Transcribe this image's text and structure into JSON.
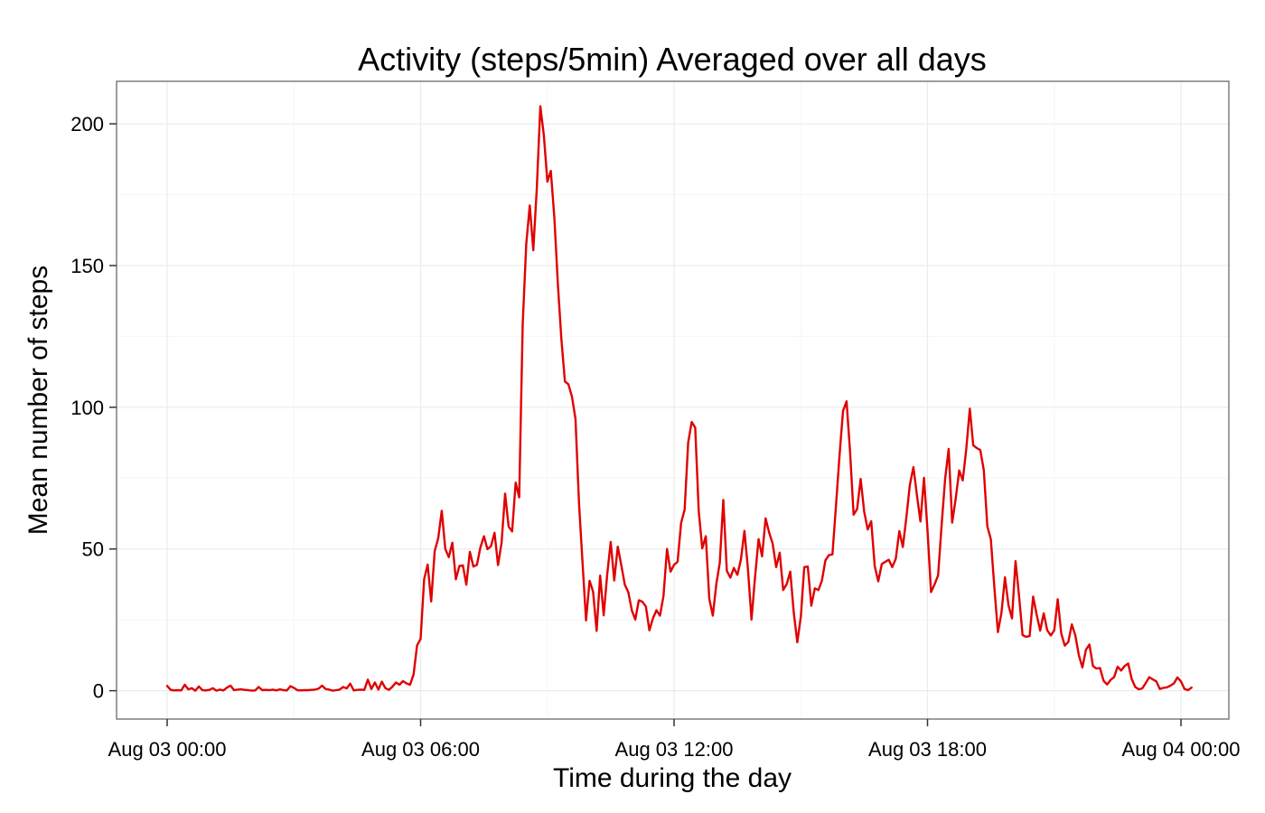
{
  "chart_data": {
    "type": "line",
    "title": "Activity (steps/5min) Averaged over all days",
    "xlabel": "Time during the day",
    "ylabel": "Mean number of steps",
    "x_axis": {
      "kind": "time",
      "range": [
        "Aug 03 00:00",
        "Aug 04 00:00"
      ],
      "ticks": [
        "Aug 03 00:00",
        "Aug 03 06:00",
        "Aug 03 12:00",
        "Aug 03 18:00",
        "Aug 04 00:00"
      ]
    },
    "y_axis": {
      "range": [
        -10,
        215
      ],
      "ticks": [
        "0",
        "50",
        "100",
        "150",
        "200"
      ]
    },
    "grid": true,
    "legend": "none",
    "series_color": "#e00000",
    "series": [
      {
        "x_interval_minutes": 5,
        "x_start": "Aug 03 00:00",
        "x_end": "Aug 03 23:55",
        "values": [
          1.7,
          0.3,
          0.1,
          0.2,
          0.1,
          2.1,
          0.5,
          0.9,
          0,
          1.5,
          0.2,
          0.1,
          0.3,
          0.9,
          0,
          0.4,
          0.1,
          1.1,
          1.8,
          0.2,
          0.4,
          0.5,
          0.3,
          0.2,
          0,
          0.1,
          1.3,
          0.2,
          0.3,
          0.2,
          0.4,
          0.1,
          0.5,
          0.2,
          0.1,
          1.6,
          1,
          0.2,
          0.1,
          0.2,
          0.2,
          0.3,
          0.4,
          0.7,
          1.8,
          0.6,
          0.4,
          0,
          0.2,
          0.4,
          1.3,
          0.8,
          2.5,
          0.1,
          0.3,
          0.4,
          0.3,
          3.9,
          0.6,
          2.9,
          0.4,
          3.2,
          0.9,
          0.3,
          1.4,
          2.9,
          2.1,
          3.4,
          2.6,
          2.1,
          5.7,
          16,
          18.3,
          39.3,
          44.5,
          31.5,
          49.3,
          53.8,
          63.5,
          50,
          47.1,
          52.2,
          39.3,
          44,
          44.2,
          37.4,
          49,
          43.8,
          44.4,
          50.6,
          54.5,
          49.9,
          51,
          55.7,
          44.3,
          52.2,
          69.5,
          57.9,
          56.2,
          73.4,
          68.2,
          129.4,
          157.5,
          171.2,
          155.4,
          177.3,
          206.2,
          195.9,
          179.6,
          183.4,
          167,
          143.5,
          124,
          109.1,
          108.1,
          103.7,
          95.9,
          66.2,
          45.2,
          24.8,
          38.8,
          34.9,
          21.1,
          40.6,
          26.6,
          41,
          52.5,
          38.9,
          50.8,
          44.3,
          37.4,
          34.7,
          28.3,
          25.1,
          31.9,
          31.4,
          29.7,
          21.3,
          25.5,
          28.4,
          26.5,
          33.4,
          50,
          42,
          44.4,
          45.5,
          59.2,
          63.9,
          87.5,
          94.8,
          92.8,
          63.4,
          50.2,
          54.5,
          32.4,
          26.5,
          37.7,
          45.1,
          67.3,
          42.3,
          39.9,
          43.3,
          40.9,
          46.3,
          56.4,
          42.8,
          25.1,
          40,
          53.5,
          47.4,
          60.8,
          55.8,
          51.9,
          43.6,
          48.7,
          35.5,
          37.6,
          42,
          27.5,
          17.1,
          26.1,
          43.6,
          43.8,
          30,
          36.1,
          35.5,
          38.8,
          46,
          47.8,
          48.1,
          65.3,
          82.9,
          98.7,
          102.1,
          84.2,
          62.1,
          64.1,
          74.7,
          63.2,
          56.9,
          59.8,
          43.9,
          38.6,
          44.7,
          45.5,
          46.2,
          43.6,
          46.6,
          56.3,
          50.7,
          61.2,
          72.7,
          78.9,
          68.9,
          59.7,
          75.1,
          56.5,
          34.8,
          37.5,
          40.7,
          58.4,
          74.7,
          85.3,
          59.3,
          67.8,
          77.7,
          74.2,
          85.3,
          99.5,
          86.6,
          85.6,
          84.9,
          77.8,
          58,
          53.4,
          36.3,
          20.7,
          27.4,
          40,
          30.2,
          25.5,
          45.7,
          33.5,
          19.6,
          19,
          19.3,
          33.2,
          26.8,
          21.2,
          27.3,
          21.3,
          19.5,
          21.3,
          32.3,
          20.2,
          15.9,
          17.2,
          23.4,
          19.5,
          12.5,
          8.2,
          14.4,
          16.3,
          8.7,
          7.8,
          8,
          3.5,
          2.2,
          3.8,
          4.8,
          8.5,
          7.1,
          8.7,
          9.6,
          4.1,
          1.3,
          0.5,
          0.8,
          2.7,
          4.8,
          4,
          3.3,
          0.6,
          1,
          1.2,
          1.8,
          2.6,
          4.7,
          3.3,
          0.6,
          0.2,
          1.1
        ]
      }
    ]
  }
}
